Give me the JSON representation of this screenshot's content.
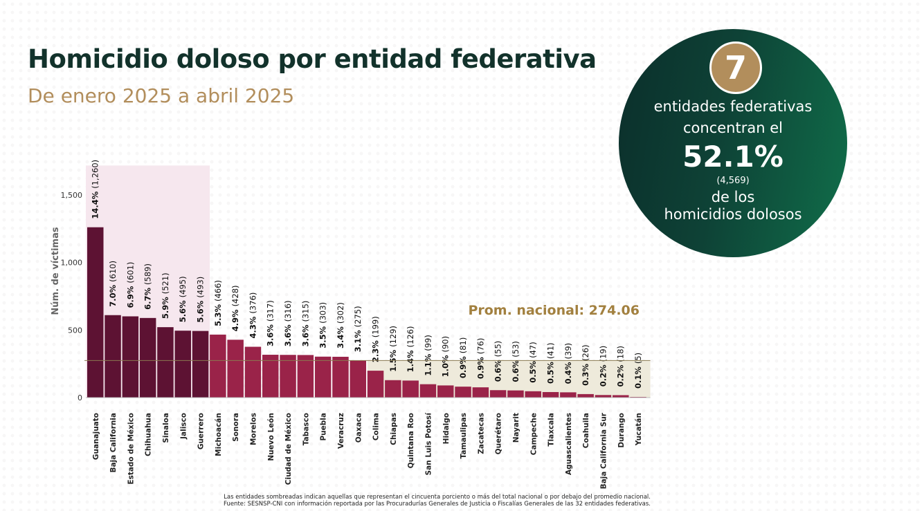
{
  "header": {
    "title": "Homicidio doloso por entidad federativa",
    "subtitle": "De enero 2025 a abril 2025"
  },
  "summary": {
    "count": "7",
    "line1": "entidades federativas",
    "line2": "concentran el",
    "percent": "52.1%",
    "total": "(4,569)",
    "line3": "de los",
    "line4": "homicidios dolosos"
  },
  "colors": {
    "dark_bar": "#5d1233",
    "light_bar": "#9a2349",
    "highlight_top": "#f6e7ee",
    "highlight_low": "#eeeadb",
    "avg_line": "#8a7a50",
    "avg_label": "#a2803f",
    "title": "#12322b",
    "subtitle": "#b28e5c",
    "circle_start": "#0b2f2b",
    "circle_end": "#106e4a",
    "badge": "#b28e5c"
  },
  "chart_data": {
    "type": "bar",
    "ylabel": "Núm. de víctimas",
    "ylim": [
      0,
      1850
    ],
    "yticks": [
      0,
      500,
      1000,
      1500
    ],
    "ytick_labels": [
      "0",
      "500",
      "1,000",
      "1,500"
    ],
    "average": 274.06,
    "average_label": "Prom. nacional: 274.06",
    "categories": [
      "Guanajuato",
      "Baja California",
      "Estado de México",
      "Chihuahua",
      "Sinaloa",
      "Jalisco",
      "Guerrero",
      "Michoacán",
      "Sonora",
      "Morelos",
      "Nuevo León",
      "Ciudad de México",
      "Tabasco",
      "Puebla",
      "Veracruz",
      "Oaxaca",
      "Colima",
      "Chiapas",
      "Quintana Roo",
      "San Luis Potosí",
      "Hidalgo",
      "Tamaulipas",
      "Zacatecas",
      "Querétaro",
      "Nayarit",
      "Campeche",
      "Tlaxcala",
      "Aguascalientes",
      "Coahuila",
      "Baja California Sur",
      "Durango",
      "Yucatán"
    ],
    "values": [
      1260,
      610,
      601,
      589,
      521,
      495,
      493,
      466,
      428,
      376,
      317,
      316,
      315,
      303,
      302,
      275,
      199,
      129,
      126,
      99,
      90,
      81,
      76,
      55,
      53,
      47,
      41,
      39,
      26,
      19,
      18,
      5
    ],
    "percent_labels": [
      "14.4%",
      "7.0%",
      "6.9%",
      "6.7%",
      "5.9%",
      "5.6%",
      "5.6%",
      "5.3%",
      "4.9%",
      "4.3%",
      "3.6%",
      "3.6%",
      "3.6%",
      "3.5%",
      "3.4%",
      "3.1%",
      "2.3%",
      "1.5%",
      "1.4%",
      "1.1%",
      "1.0%",
      "0.9%",
      "0.9%",
      "0.6%",
      "0.6%",
      "0.5%",
      "0.5%",
      "0.4%",
      "0.3%",
      "0.2%",
      "0.2%",
      "0.1%"
    ],
    "count_labels": [
      "(1,260)",
      "(610)",
      "(601)",
      "(589)",
      "(521)",
      "(495)",
      "(493)",
      "(466)",
      "(428)",
      "(376)",
      "(317)",
      "(316)",
      "(315)",
      "(303)",
      "(302)",
      "(275)",
      "(199)",
      "(129)",
      "(126)",
      "(99)",
      "(90)",
      "(81)",
      "(76)",
      "(55)",
      "(53)",
      "(47)",
      "(41)",
      "(39)",
      "(26)",
      "(19)",
      "(18)",
      "(5)"
    ],
    "highlight_top_count": 7,
    "highlight_low_from_index": 16
  },
  "footnote": {
    "line1": "Las entidades sombreadas indican aquellas que representan el cincuenta porciento o más del total nacional o por debajo del promedio nacional.",
    "line2": "Fuente: SESNSP-CNI con información reportada por las Procuradurías Generales de Justicia o Fiscalías Generales de las 32 entidades federativas."
  }
}
